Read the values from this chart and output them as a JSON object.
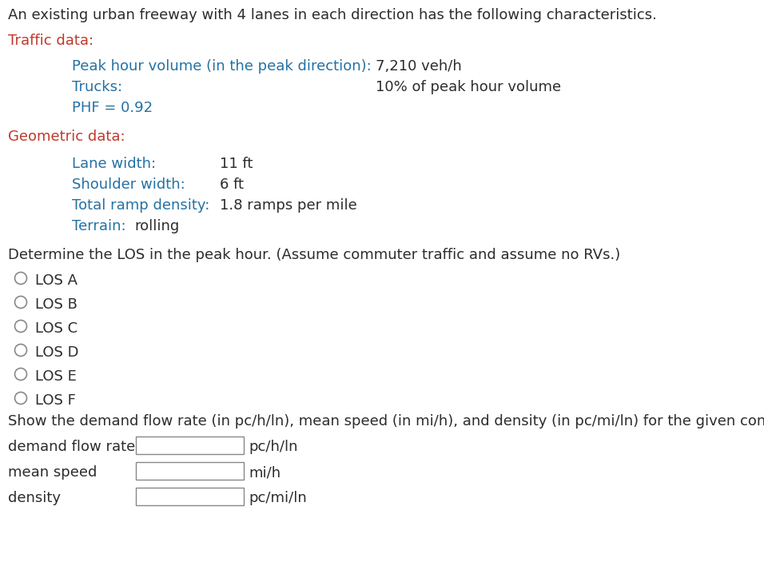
{
  "bg_color": "#ffffff",
  "text_color_dark": "#2c2c2c",
  "text_color_red": "#c0392b",
  "text_color_blue": "#2471a3",
  "line1": "An existing urban freeway with 4 lanes in each direction has the following characteristics.",
  "traffic_label": "Traffic data:",
  "peak_label": "Peak hour volume (in the peak direction):",
  "peak_value": "7,210 veh/h",
  "trucks_label": "Trucks:",
  "trucks_value": "10% of peak hour volume",
  "phf_label": "PHF = 0.92",
  "geom_label": "Geometric data:",
  "lane_label": "Lane width:",
  "lane_value": "11 ft",
  "shoulder_label": "Shoulder width:",
  "shoulder_value": "6 ft",
  "ramp_label": "Total ramp density:",
  "ramp_value": "1.8 ramps per mile",
  "terrain_label": "Terrain:",
  "terrain_value": "rolling",
  "determine_text": "Determine the LOS in the peak hour. (Assume commuter traffic and assume no RVs.)",
  "los_options": [
    "LOS A",
    "LOS B",
    "LOS C",
    "LOS D",
    "LOS E",
    "LOS F"
  ],
  "show_text": "Show the demand flow rate (in pc/h/ln), mean speed (in mi/h), and density (in pc/mi/ln) for the given conditions.",
  "row1_label": "demand flow rate",
  "row1_unit": "pc/h/ln",
  "row2_label": "mean speed",
  "row2_unit": "mi/h",
  "row3_label": "density",
  "row3_unit": "pc/mi/ln",
  "font_size": 13.0,
  "fig_width": 9.56,
  "fig_height": 7.28,
  "dpi": 100
}
